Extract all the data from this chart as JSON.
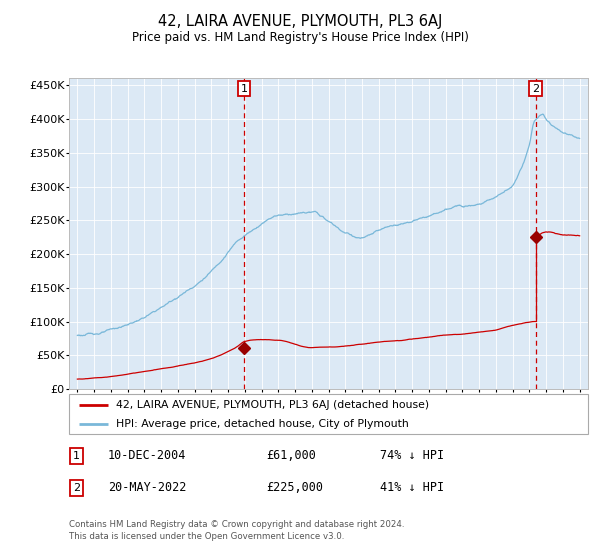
{
  "title": "42, LAIRA AVENUE, PLYMOUTH, PL3 6AJ",
  "subtitle": "Price paid vs. HM Land Registry's House Price Index (HPI)",
  "background_color": "#dce9f5",
  "hpi_color": "#7ab8d9",
  "price_color": "#cc0000",
  "dashed_line_color": "#cc0000",
  "marker_color": "#990000",
  "ylim": [
    0,
    460000
  ],
  "legend_entry1": "42, LAIRA AVENUE, PLYMOUTH, PL3 6AJ (detached house)",
  "legend_entry2": "HPI: Average price, detached house, City of Plymouth",
  "annotation1_date": "10-DEC-2004",
  "annotation1_price": "£61,000",
  "annotation1_hpi": "74% ↓ HPI",
  "annotation2_date": "20-MAY-2022",
  "annotation2_price": "£225,000",
  "annotation2_hpi": "41% ↓ HPI",
  "footer1": "Contains HM Land Registry data © Crown copyright and database right 2024.",
  "footer2": "This data is licensed under the Open Government Licence v3.0.",
  "sale1_year": 2004.95,
  "sale1_value": 61000,
  "sale2_year": 2022.38,
  "sale2_value": 225000,
  "hpi_key_t": [
    0,
    2,
    4,
    6,
    8,
    9.5,
    10.5,
    12,
    14,
    15,
    16,
    17,
    18,
    19,
    20,
    21,
    22,
    23,
    24,
    25,
    26,
    26.5,
    27,
    27.3,
    27.8,
    28,
    29,
    30
  ],
  "hpi_key_v": [
    80000,
    87000,
    105000,
    135000,
    175000,
    220000,
    240000,
    265000,
    270000,
    255000,
    238000,
    230000,
    238000,
    245000,
    252000,
    258000,
    265000,
    272000,
    280000,
    292000,
    310000,
    335000,
    370000,
    405000,
    415000,
    408000,
    392000,
    385000
  ],
  "price_key_t": [
    0,
    2,
    4,
    6,
    8,
    9.5,
    10,
    11,
    12,
    14,
    15,
    16,
    17,
    18,
    19,
    20,
    21,
    22,
    23,
    24,
    25,
    26,
    27.3
  ],
  "price_key_v": [
    15000,
    19000,
    26000,
    34000,
    45000,
    62000,
    70000,
    73000,
    72000,
    60000,
    60000,
    62000,
    65000,
    68000,
    70000,
    73000,
    76000,
    80000,
    82000,
    85000,
    88000,
    95000,
    100000
  ],
  "price_key_t2": [
    27.38,
    28,
    29,
    30
  ],
  "price_key_v2": [
    225000,
    232000,
    228000,
    226000
  ]
}
